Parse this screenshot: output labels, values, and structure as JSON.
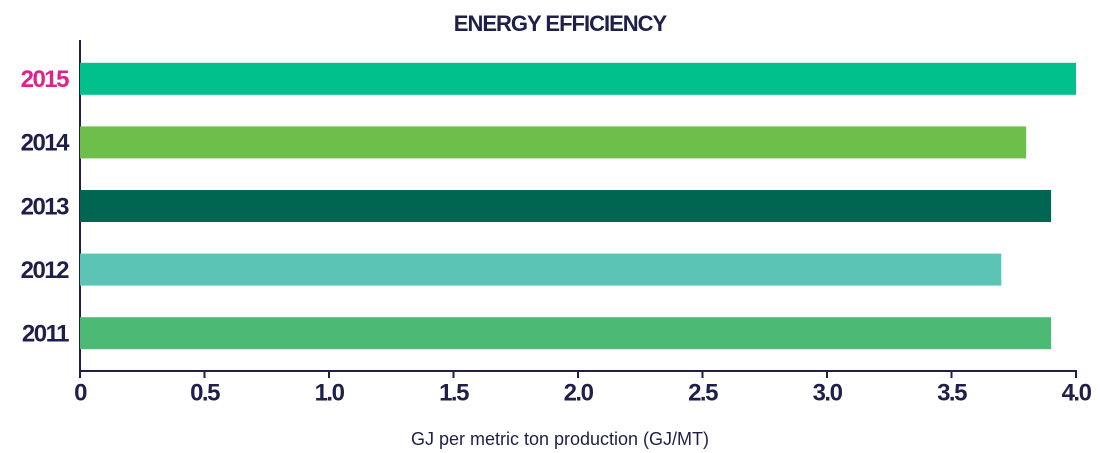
{
  "chart_data": {
    "type": "hbar",
    "title": "ENERGY EFFICIENCY",
    "categories": [
      "2015",
      "2014",
      "2013",
      "2012",
      "2011"
    ],
    "values": [
      4.0,
      3.8,
      3.9,
      3.7,
      3.9
    ],
    "colors": [
      "#00c08b",
      "#6dbe4b",
      "#006652",
      "#5bc4b4",
      "#4cba74"
    ],
    "label_colors": [
      "#e0218a",
      "#1f1f4a",
      "#1f1f4a",
      "#1f1f4a",
      "#1f1f4a"
    ],
    "x_label": "GJ per metric ton production (GJ/MT)",
    "xlim": [
      0,
      4
    ],
    "xticks": [
      0,
      0.5,
      {
        "value": 1,
        "label": "1.0"
      },
      1.5,
      {
        "value": 2,
        "label": "2.0"
      },
      2.5,
      {
        "value": 3,
        "label": "3.0"
      },
      3.5,
      {
        "value": 4,
        "label": "4.0"
      }
    ]
  }
}
